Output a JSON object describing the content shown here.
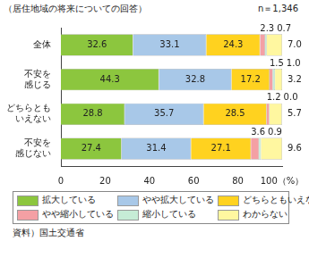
{
  "chart_data": {
    "type": "bar",
    "orientation": "horizontal",
    "stacked": true,
    "title": "（居住地域の将来についての回答）",
    "subtitle": "n＝1,346",
    "source": "資料）国土交通省",
    "categories": [
      "全体",
      "不安を感じる",
      "どちらともいえない",
      "不安を感じない"
    ],
    "series": [
      {
        "name": "拡大している",
        "color": "#8cc63e",
        "values": [
          32.6,
          44.3,
          28.8,
          27.4
        ],
        "value_labels": [
          "32.6",
          "44.3",
          "28.8",
          "27.4"
        ]
      },
      {
        "name": "やや拡大している",
        "color": "#a8c8e8",
        "values": [
          33.1,
          32.8,
          35.7,
          31.4
        ],
        "value_labels": [
          "33.1",
          "32.8",
          "35.7",
          "31.4"
        ]
      },
      {
        "name": "どちらともいえない",
        "color": "#ffd21f",
        "values": [
          24.3,
          17.2,
          28.5,
          27.1
        ],
        "value_labels": [
          "24.3",
          "17.2",
          "28.5",
          "27.1"
        ]
      },
      {
        "name": "やや縮小している",
        "color": "#f4a0a4",
        "values": [
          2.3,
          1.5,
          1.2,
          3.6
        ],
        "value_labels": [
          "2.3",
          "1.5",
          "1.2",
          "3.6"
        ]
      },
      {
        "name": "縮小している",
        "color": "#c6ecd6",
        "values": [
          0.7,
          1.0,
          0.0,
          0.9
        ],
        "value_labels": [
          "0.7",
          "1.0",
          "0.0",
          "0.9"
        ]
      },
      {
        "name": "わからない",
        "color": "#fff7a0",
        "values": [
          7.0,
          3.2,
          5.7,
          9.6
        ],
        "value_labels": [
          "7.0",
          "3.2",
          "5.7",
          "9.6"
        ]
      }
    ],
    "xlim": [
      0,
      100
    ],
    "xticks": [
      0,
      20,
      40,
      60,
      80,
      {
        "value": 100,
        "label": "100（%）"
      }
    ],
    "grid": false,
    "data_labels": true,
    "legend": "bottom"
  }
}
